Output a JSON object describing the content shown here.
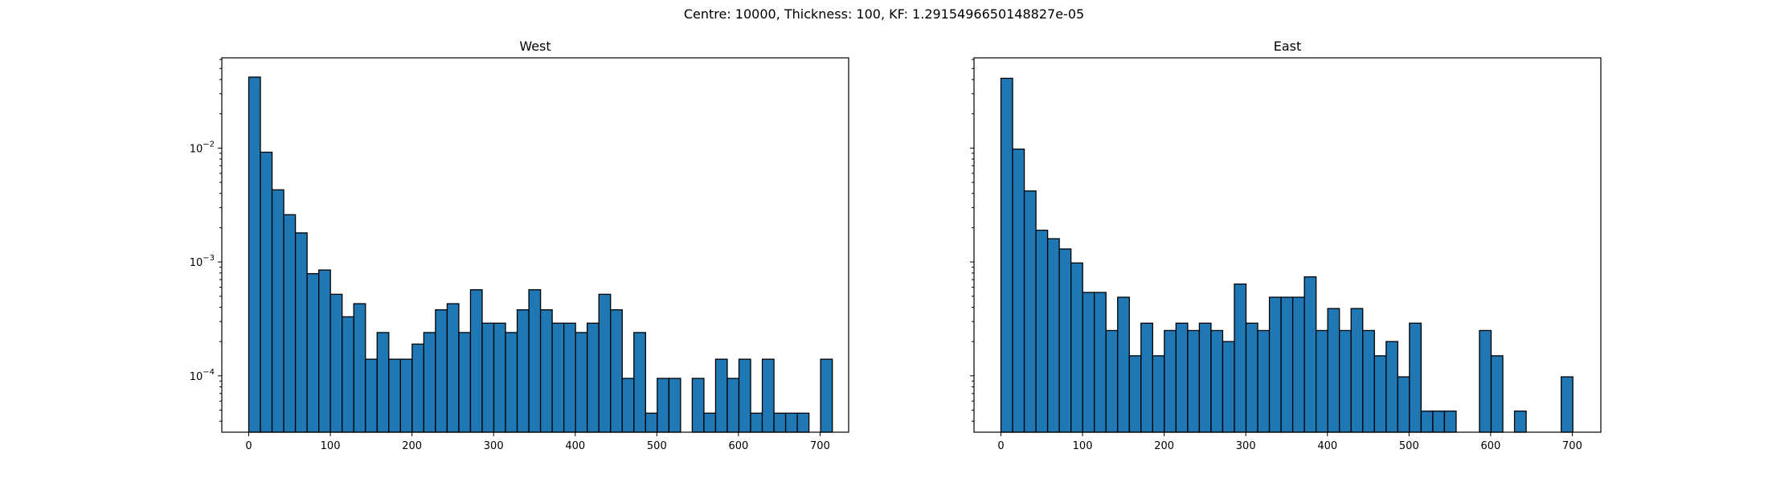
{
  "figure": {
    "suptitle": "Centre: 10000, Thickness: 100, KF: 1.2915496650148827e-05"
  },
  "chart_data": [
    {
      "type": "bar",
      "title": "West",
      "xlabel": "",
      "ylabel": "",
      "yscale": "log",
      "xlim": [
        -33,
        735
      ],
      "ylim": [
        3.2e-05,
        0.062
      ],
      "xticks": [
        0,
        100,
        200,
        300,
        400,
        500,
        600,
        700
      ],
      "yticks": [
        {
          "value": 0.0001,
          "base": "10",
          "exp": "−4"
        },
        {
          "value": 0.001,
          "base": "10",
          "exp": "−3"
        },
        {
          "value": 0.01,
          "base": "10",
          "exp": "−2"
        }
      ],
      "bin_width": 14.3,
      "bin_start": 0,
      "values": [
        0.042,
        0.0092,
        0.0043,
        0.0026,
        0.0018,
        0.00079,
        0.00085,
        0.00052,
        0.00033,
        0.00043,
        0.00014,
        0.00024,
        0.00014,
        0.00014,
        0.00019,
        0.00024,
        0.00038,
        0.00043,
        0.00024,
        0.00057,
        0.00029,
        0.00029,
        0.00024,
        0.00038,
        0.00057,
        0.00038,
        0.00029,
        0.00029,
        0.00024,
        0.00029,
        0.00052,
        0.00038,
        9.5e-05,
        0.00024,
        4.7e-05,
        9.5e-05,
        9.5e-05,
        0,
        9.5e-05,
        4.7e-05,
        0.00014,
        9.5e-05,
        0.00014,
        4.7e-05,
        0.00014,
        4.7e-05,
        4.7e-05,
        4.7e-05,
        0,
        0.00014
      ],
      "grid": false
    },
    {
      "type": "bar",
      "title": "East",
      "xlabel": "",
      "ylabel": "",
      "yscale": "log",
      "xlim": [
        -33,
        735
      ],
      "ylim": [
        3.2e-05,
        0.062
      ],
      "xticks": [
        0,
        100,
        200,
        300,
        400,
        500,
        600,
        700
      ],
      "yticks": [],
      "bin_width": 14.3,
      "bin_start": 0,
      "values": [
        0.041,
        0.0098,
        0.0042,
        0.0019,
        0.0016,
        0.0013,
        0.00098,
        0.00054,
        0.00054,
        0.00025,
        0.00049,
        0.00015,
        0.00029,
        0.00015,
        0.00025,
        0.00029,
        0.00025,
        0.00029,
        0.00025,
        0.0002,
        0.00064,
        0.00029,
        0.00025,
        0.00049,
        0.00049,
        0.00049,
        0.00074,
        0.00025,
        0.00039,
        0.00025,
        0.00039,
        0.00025,
        0.00015,
        0.0002,
        9.8e-05,
        0.00029,
        4.9e-05,
        4.9e-05,
        4.9e-05,
        0,
        0,
        0.00025,
        0.00015,
        0,
        4.9e-05,
        0,
        0,
        0,
        9.8e-05
      ],
      "grid": false
    }
  ]
}
